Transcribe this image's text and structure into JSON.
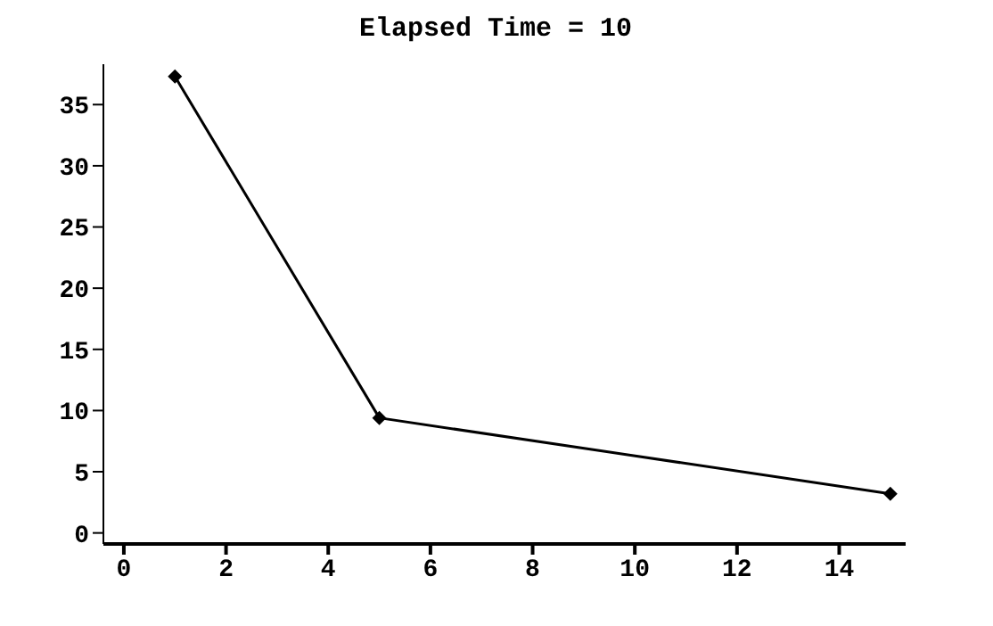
{
  "chart_data": {
    "type": "line",
    "title": "Elapsed Time = 10",
    "x": [
      1,
      5,
      15
    ],
    "series": [
      {
        "color": "#000000",
        "values": [
          37.3,
          9.4,
          3.2
        ]
      }
    ],
    "xlim": [
      -0.4,
      15.3
    ],
    "xticks": [
      0,
      2,
      4,
      6,
      8,
      10,
      12,
      14
    ],
    "ylim": [
      -0.9,
      38.3
    ],
    "yticks": [
      0,
      5,
      10,
      15,
      20,
      25,
      30,
      35
    ],
    "marker": "diamond",
    "line_style": "solid",
    "grid": false,
    "legend": false
  }
}
